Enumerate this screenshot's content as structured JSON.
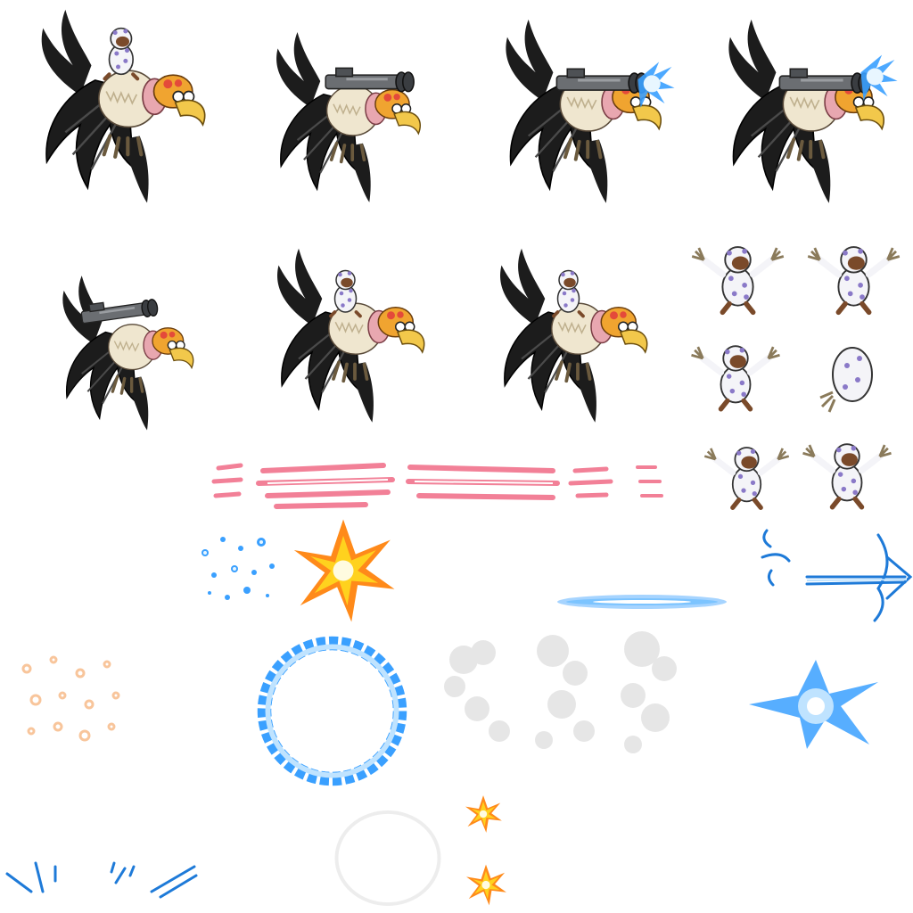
{
  "sheet": {
    "type": "sprite-sheet",
    "palette": {
      "vulture_black": "#1c1c1c",
      "vulture_grey": "#4a4a4a",
      "ruff_cream": "#efe6cf",
      "beak_yellow": "#f2c84b",
      "helmet_orange": "#f0a430",
      "skin_pink": "#e8a7b0",
      "cannon_grey": "#6b6e72",
      "suit_white": "#f4f4f8",
      "suit_dots": "#8a79c8",
      "ferret_brown": "#7a4a2a",
      "slash_pink": "#f06a86",
      "energy_blue": "#3aa0ff",
      "energy_core": "#e8f6ff",
      "burst_yellow": "#ffd21e",
      "burst_orange": "#ff8a1a",
      "smoke_grey": "#d6d6d6",
      "spark_peach": "#f6b27a"
    },
    "sprites": {
      "vulture_riding": "vulture-with-rider-icon",
      "vulture_cannon": "vulture-with-cannon-icon",
      "vulture_firing": "vulture-firing-cannon-icon",
      "ferret_pose": "ferret-in-polka-dot-suit-icon",
      "effects": [
        "pink-slash-icon",
        "blue-particles-icon",
        "explosion-burst-icon",
        "blue-beam-icon",
        "blue-arrow-icon",
        "peach-sparkles-icon",
        "blue-ring-icon",
        "smoke-cloud-icon",
        "blue-flash-icon",
        "small-star-burst-icon",
        "blue-speed-lines-icon",
        "faint-ring-icon"
      ]
    }
  }
}
